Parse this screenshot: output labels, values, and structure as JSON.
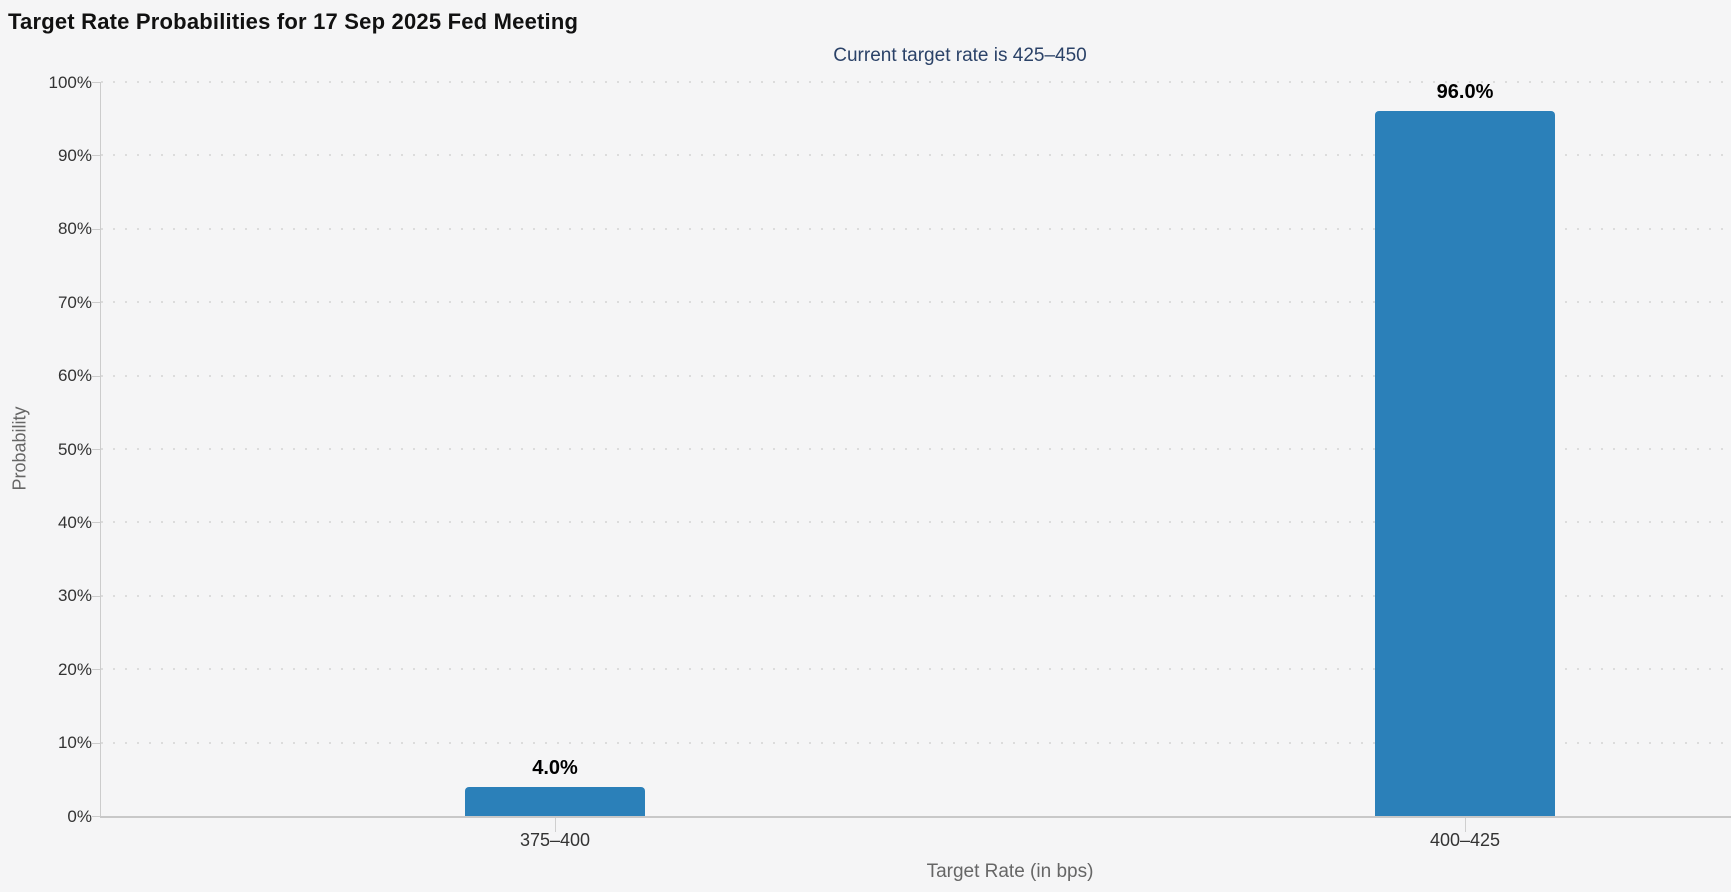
{
  "chart_data": {
    "type": "bar",
    "title": "Target Rate Probabilities for 17 Sep 2025 Fed Meeting",
    "subtitle": "Current target rate is 425–450",
    "categories": [
      "375–400",
      "400–425"
    ],
    "values": [
      4.0,
      96.0
    ],
    "value_labels": [
      "4.0%",
      "96.0%"
    ],
    "xlabel": "Target Rate (in bps)",
    "ylabel": "Probability",
    "ylim": [
      0,
      100
    ],
    "ytick_step": 10,
    "ytick_labels": [
      "0%",
      "10%",
      "20%",
      "30%",
      "40%",
      "50%",
      "60%",
      "70%",
      "80%",
      "90%",
      "100%"
    ],
    "grid": "horizontal-dotted",
    "legend": "none",
    "colors": {
      "bar": "#2b80b9",
      "subtitle_text": "#2b4268",
      "title_text": "#111111",
      "tick_text": "#333333",
      "axis_title_text": "#666666",
      "axis_line": "#cccccc",
      "grid_dot": "#dcdcdc",
      "datalabel_text": "#000000",
      "background": "#f5f5f6"
    }
  }
}
